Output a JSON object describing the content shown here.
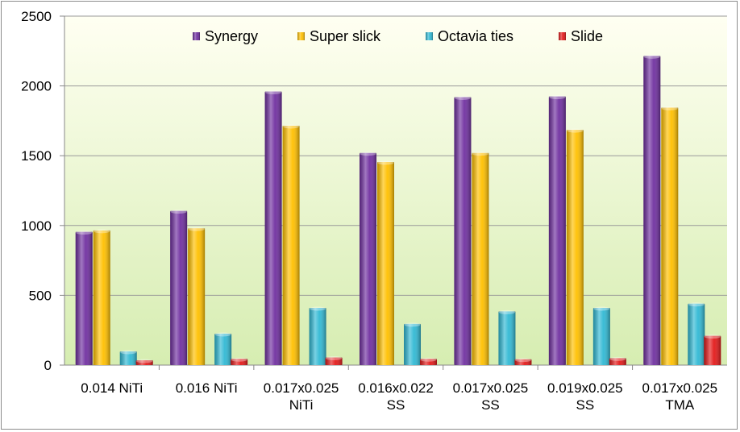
{
  "chart_data": {
    "type": "bar",
    "title": "",
    "xlabel": "",
    "ylabel": "",
    "ylim": [
      0,
      2500
    ],
    "yticks": [
      0,
      500,
      1000,
      1500,
      2000,
      2500
    ],
    "grid": true,
    "legend": "top-center",
    "categories": [
      [
        "0.014 NiTi"
      ],
      [
        "0.016 NiTi"
      ],
      [
        "0.017x0.025",
        "NiTi"
      ],
      [
        "0.016x0.022",
        "SS"
      ],
      [
        "0.017x0.025",
        "SS"
      ],
      [
        "0.019x0.025",
        "SS"
      ],
      [
        "0.017x0.025",
        "TMA"
      ]
    ],
    "series": [
      {
        "name": "Synergy",
        "color": "#7030A0",
        "values": [
          955,
          1105,
          1960,
          1520,
          1920,
          1925,
          2215
        ]
      },
      {
        "name": "Super slick",
        "color": "#FFC000",
        "values": [
          965,
          980,
          1715,
          1455,
          1520,
          1685,
          1845
        ]
      },
      {
        "name": "Octavia ties",
        "color": "#31B9D4",
        "values": [
          98,
          225,
          410,
          295,
          385,
          410,
          440
        ]
      },
      {
        "name": "Slide",
        "color": "#E31A1A",
        "values": [
          35,
          45,
          55,
          45,
          42,
          50,
          210
        ]
      }
    ],
    "colors": {
      "plot_background_top": "#FFFFF2",
      "plot_background_bottom": "#D6EDB1",
      "gridline": "#9a9a9a",
      "axis": "#888888"
    }
  }
}
